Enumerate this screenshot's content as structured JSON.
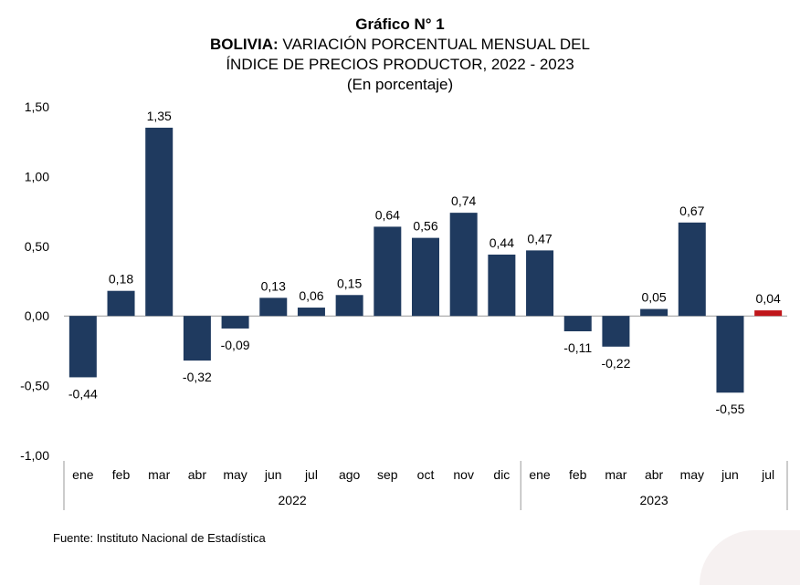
{
  "header": {
    "title": "Gráfico N° 1",
    "subtitle_bold": "BOLIVIA:",
    "subtitle_rest": " VARIACIÓN PORCENTUAL MENSUAL DEL",
    "subtitle_line2": "ÍNDICE DE PRECIOS PRODUCTOR, 2022 - 2023",
    "unit": "(En porcentaje)"
  },
  "source": "Fuente: Instituto Nacional de Estadística",
  "colors": {
    "bar": "#1f3a5f",
    "highlight": "#c0161a",
    "axis": "#999999"
  },
  "chart_data": {
    "type": "bar",
    "title": "Gráfico N° 1",
    "categories": [
      "ene",
      "feb",
      "mar",
      "abr",
      "may",
      "jun",
      "jul",
      "ago",
      "sep",
      "oct",
      "nov",
      "dic",
      "ene",
      "feb",
      "mar",
      "abr",
      "may",
      "jun",
      "jul"
    ],
    "groups": [
      {
        "label": "2022",
        "count": 12
      },
      {
        "label": "2023",
        "count": 7
      }
    ],
    "values": [
      -0.44,
      0.18,
      1.35,
      -0.32,
      -0.09,
      0.13,
      0.06,
      0.15,
      0.64,
      0.56,
      0.74,
      0.44,
      0.47,
      -0.11,
      -0.22,
      0.05,
      0.67,
      -0.55,
      0.04
    ],
    "value_labels": [
      "-0,44",
      "0,18",
      "1,35",
      "-0,32",
      "-0,09",
      "0,13",
      "0,06",
      "0,15",
      "0,64",
      "0,56",
      "0,74",
      "0,44",
      "0,47",
      "-0,11",
      "-0,22",
      "0,05",
      "0,67",
      "-0,55",
      "0,04"
    ],
    "highlight_index": 18,
    "ylim": [
      -1.0,
      1.5
    ],
    "yticks": [
      1.5,
      1.0,
      0.5,
      0.0,
      -0.5,
      -1.0
    ],
    "ytick_labels": [
      "1,50",
      "1,00",
      "0,50",
      "0,00",
      "-0,50",
      "-1,00"
    ],
    "grid": false
  }
}
